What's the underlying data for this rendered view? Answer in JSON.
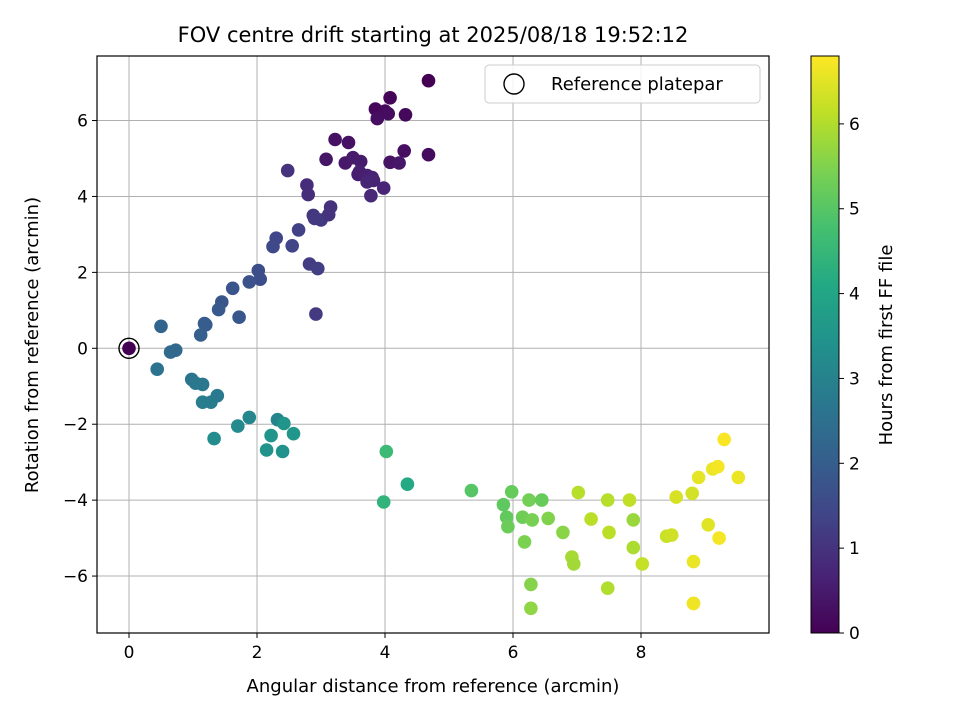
{
  "chart_data": {
    "type": "scatter",
    "title": "FOV centre drift starting at 2025/08/18 19:52:12",
    "xlabel": "Angular distance from reference (arcmin)",
    "ylabel": "Rotation from reference (arcmin)",
    "xlim": [
      -0.5,
      10
    ],
    "ylim": [
      -7.5,
      7.7
    ],
    "xticks": [
      0,
      2,
      4,
      6,
      8
    ],
    "yticks": [
      -6,
      -4,
      -2,
      0,
      2,
      4,
      6
    ],
    "grid": true,
    "legend": {
      "placement": "top-right",
      "entries": [
        "Reference platepar"
      ]
    },
    "colorbar": {
      "label": "Hours from first FF file",
      "range": [
        0,
        6.8
      ],
      "ticks": [
        0,
        1,
        2,
        3,
        4,
        5,
        6
      ],
      "colormap": "viridis"
    },
    "reference_point": {
      "x": 0,
      "y": 0
    },
    "series": [
      {
        "x": [
          4.68,
          4.08,
          3.85,
          4.32,
          4.0,
          4.05,
          3.88,
          4.68,
          3.22,
          3.43,
          3.08,
          3.38,
          3.5,
          3.62,
          4.3,
          4.08,
          4.22,
          3.58,
          3.6,
          3.72,
          3.8,
          3.82,
          3.72,
          3.98,
          3.78,
          2.48,
          2.78,
          2.8,
          2.88,
          3.15,
          2.9,
          3.0,
          3.12,
          2.65,
          2.55,
          2.3,
          2.25,
          2.82,
          2.95,
          2.02,
          2.05,
          1.88,
          1.62,
          1.72,
          1.45,
          1.4,
          1.18,
          1.2,
          2.92,
          1.12,
          0.5,
          0.65,
          0.73,
          0.0,
          0.44,
          0.98,
          1.04,
          1.15,
          1.15,
          1.28,
          1.38,
          1.88,
          1.7,
          2.32,
          2.42,
          2.22,
          2.57,
          2.15,
          2.4,
          1.33,
          4.02,
          4.35,
          3.98,
          5.35,
          5.98,
          5.85,
          5.9,
          6.15,
          6.25,
          6.3,
          6.45,
          5.92,
          6.55,
          6.18,
          6.78,
          6.92,
          7.02,
          7.22,
          6.95,
          7.48,
          7.5,
          7.48,
          7.82,
          7.88,
          7.88,
          8.02,
          6.28,
          6.28,
          8.4,
          8.48,
          8.55,
          8.8,
          8.9,
          8.82,
          9.12,
          9.05,
          9.2,
          9.3,
          9.52,
          9.22,
          8.82,
          8.82
        ],
        "y": [
          7.05,
          6.6,
          6.3,
          6.15,
          6.25,
          6.18,
          6.05,
          5.1,
          5.5,
          5.42,
          4.98,
          4.88,
          5.02,
          4.92,
          5.2,
          4.9,
          4.88,
          4.58,
          4.65,
          4.55,
          4.5,
          4.42,
          4.38,
          4.22,
          4.02,
          4.68,
          4.3,
          4.05,
          3.5,
          3.72,
          3.42,
          3.38,
          3.52,
          3.12,
          2.7,
          2.9,
          2.68,
          2.22,
          2.1,
          2.05,
          1.82,
          1.75,
          1.58,
          0.82,
          1.22,
          1.02,
          0.65,
          0.62,
          0.9,
          0.35,
          0.58,
          -0.1,
          -0.05,
          0.0,
          -0.55,
          -0.82,
          -0.92,
          -0.95,
          -1.42,
          -1.42,
          -1.25,
          -1.82,
          -2.05,
          -1.88,
          -1.98,
          -2.3,
          -2.25,
          -2.68,
          -2.72,
          -2.38,
          -2.72,
          -3.58,
          -4.05,
          -3.75,
          -3.78,
          -4.12,
          -4.45,
          -4.45,
          -4.0,
          -4.52,
          -4.0,
          -4.7,
          -4.48,
          -5.1,
          -4.85,
          -5.5,
          -3.8,
          -4.5,
          -5.68,
          -4.0,
          -4.85,
          -6.32,
          -4.0,
          -4.52,
          -5.25,
          -5.68,
          -6.22,
          -6.85,
          -4.95,
          -4.92,
          -3.92,
          -3.82,
          -3.4,
          -6.72,
          -3.18,
          -4.65,
          -3.12,
          -2.4,
          -3.4,
          -5.0,
          -5.62,
          -6.72
        ],
        "hours": [
          0.0,
          0.06,
          0.12,
          0.15,
          0.18,
          0.22,
          0.25,
          0.2,
          0.3,
          0.33,
          0.4,
          0.45,
          0.48,
          0.5,
          0.28,
          0.35,
          0.42,
          0.55,
          0.58,
          0.6,
          0.65,
          0.68,
          0.72,
          0.7,
          0.78,
          1.0,
          0.85,
          0.9,
          1.05,
          0.95,
          1.1,
          1.12,
          1.0,
          1.3,
          1.35,
          1.42,
          1.45,
          1.2,
          1.25,
          1.58,
          1.62,
          1.7,
          1.78,
          1.85,
          1.82,
          1.88,
          1.95,
          2.0,
          1.15,
          2.05,
          2.2,
          2.35,
          2.3,
          0.0,
          2.55,
          2.62,
          2.68,
          2.72,
          2.85,
          2.82,
          2.78,
          3.1,
          3.2,
          3.05,
          3.5,
          3.52,
          3.55,
          3.45,
          3.4,
          3.3,
          4.6,
          4.1,
          4.4,
          5.0,
          5.2,
          5.1,
          5.15,
          5.3,
          5.35,
          5.4,
          5.2,
          5.25,
          5.5,
          5.45,
          5.6,
          5.9,
          6.05,
          6.1,
          5.85,
          6.05,
          6.1,
          6.0,
          6.15,
          5.75,
          5.95,
          6.2,
          5.55,
          5.65,
          6.25,
          6.3,
          6.4,
          6.35,
          6.55,
          6.55,
          6.6,
          6.5,
          6.7,
          6.75,
          6.62,
          6.7,
          6.6,
          6.65
        ]
      }
    ]
  }
}
